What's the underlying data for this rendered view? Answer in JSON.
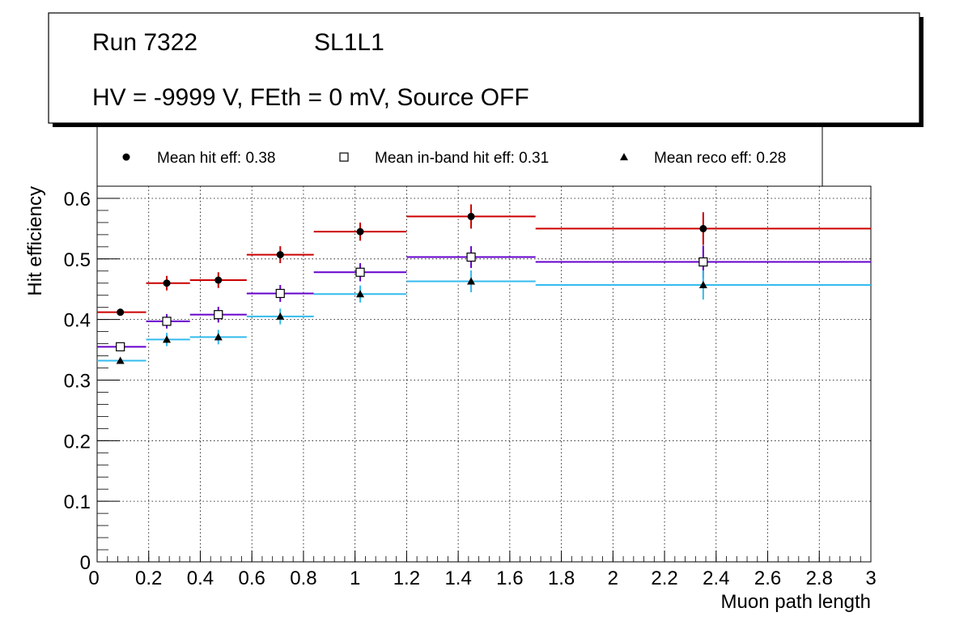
{
  "title_box": {
    "run_label": "Run 7322",
    "layer_label": "SL1L1",
    "conditions": "HV = -9999 V, FEth = 0 mV, Source OFF"
  },
  "chart_data": {
    "type": "scatter",
    "xlabel": "Muon path length",
    "ylabel": "Hit efficiency",
    "xlim": [
      0,
      3
    ],
    "ylim": [
      0,
      0.62
    ],
    "x_ticks": [
      "0",
      "0.2",
      "0.4",
      "0.6",
      "0.8",
      "1",
      "1.2",
      "1.4",
      "1.6",
      "1.8",
      "2",
      "2.2",
      "2.4",
      "2.6",
      "2.8",
      "3"
    ],
    "y_ticks": [
      "0",
      "0.1",
      "0.2",
      "0.3",
      "0.4",
      "0.5",
      "0.6"
    ],
    "grid": true,
    "legend_placement": "top",
    "bin_edges": [
      0,
      0.19,
      0.36,
      0.58,
      0.84,
      1.2,
      1.7,
      3.0
    ],
    "series": [
      {
        "name": "Mean hit  eff: 0.38",
        "marker": "circle",
        "color": "#cc0000",
        "x": [
          0.09,
          0.27,
          0.47,
          0.71,
          1.02,
          1.45,
          2.35
        ],
        "y": [
          0.412,
          0.46,
          0.465,
          0.507,
          0.545,
          0.57,
          0.55
        ],
        "yerr": [
          0.005,
          0.012,
          0.013,
          0.014,
          0.015,
          0.02,
          0.027
        ]
      },
      {
        "name": "Mean in-band hit eff: 0.31",
        "marker": "open-square",
        "color": "#6600cc",
        "x": [
          0.09,
          0.27,
          0.47,
          0.71,
          1.02,
          1.45,
          2.35
        ],
        "y": [
          0.355,
          0.397,
          0.408,
          0.443,
          0.478,
          0.503,
          0.495
        ],
        "yerr": [
          0.005,
          0.012,
          0.013,
          0.014,
          0.015,
          0.018,
          0.027
        ]
      },
      {
        "name": "Mean reco eff: 0.28",
        "marker": "triangle",
        "color": "#33bbee",
        "x": [
          0.09,
          0.27,
          0.47,
          0.71,
          1.02,
          1.45,
          2.35
        ],
        "y": [
          0.332,
          0.367,
          0.371,
          0.405,
          0.442,
          0.463,
          0.457
        ],
        "yerr": [
          0.005,
          0.011,
          0.012,
          0.013,
          0.014,
          0.018,
          0.024
        ]
      }
    ]
  }
}
